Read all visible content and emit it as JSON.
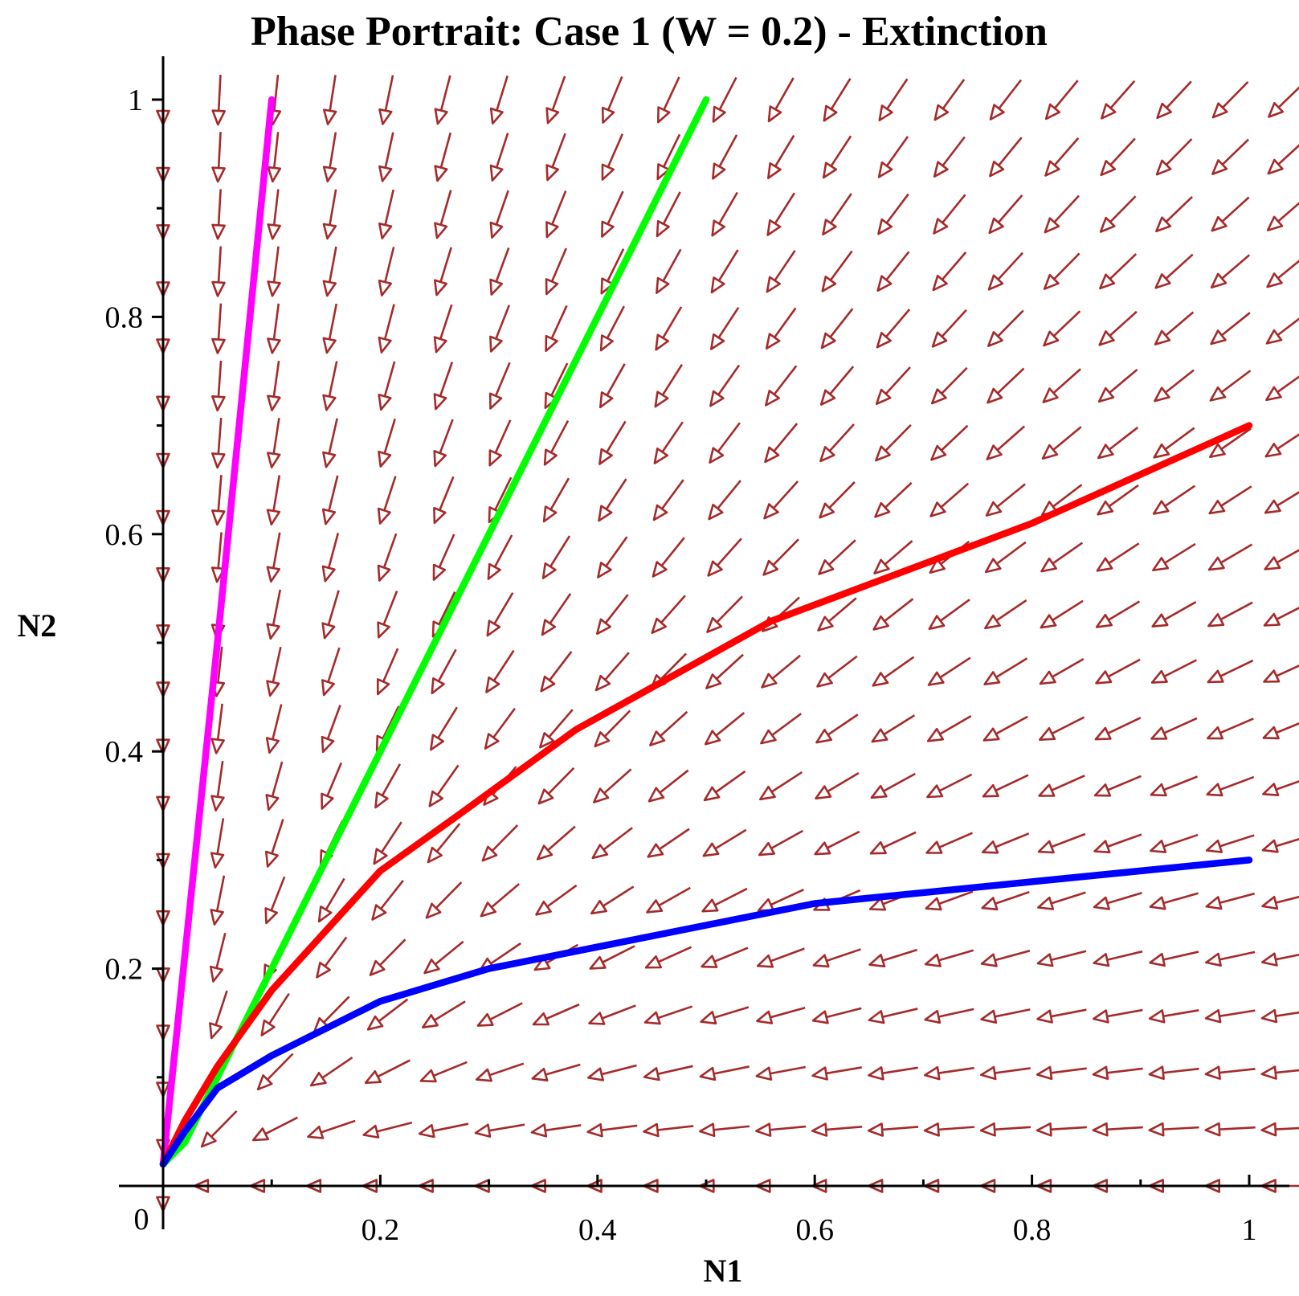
{
  "chart_data": {
    "type": "phase-portrait",
    "title": "Phase Portrait: Case 1 (W = 0.2) - Extinction",
    "xlabel": "N1",
    "ylabel": "N2",
    "xlim": [
      0,
      1.03
    ],
    "ylim": [
      -0.001,
      1.03
    ],
    "origin_label": "0",
    "xticks": [
      {
        "value": 0.2,
        "label": "0.2"
      },
      {
        "value": 0.4,
        "label": "0.4"
      },
      {
        "value": 0.6,
        "label": "0.6"
      },
      {
        "value": 0.8,
        "label": "0.8"
      },
      {
        "value": 1.0,
        "label": "1"
      }
    ],
    "yticks": [
      {
        "value": 0.2,
        "label": "0.2"
      },
      {
        "value": 0.4,
        "label": "0.4"
      },
      {
        "value": 0.6,
        "label": "0.6"
      },
      {
        "value": 0.8,
        "label": "0.8"
      },
      {
        "value": 1.0,
        "label": "1"
      }
    ],
    "minor_tick_step": 0.1,
    "vector_field": {
      "x_grid": [
        0,
        0.0517,
        0.1034,
        0.1552,
        0.2069,
        0.2586,
        0.3103,
        0.3621,
        0.4138,
        0.4655,
        0.5172,
        0.569,
        0.6207,
        0.6724,
        0.7241,
        0.7759,
        0.8276,
        0.8793,
        0.931,
        0.9828,
        1.0345
      ],
      "y_grid": [
        0,
        0.0526,
        0.1053,
        0.1579,
        0.2105,
        0.2632,
        0.3158,
        0.3684,
        0.4211,
        0.4737,
        0.5263,
        0.5789,
        0.6316,
        0.6842,
        0.7368,
        0.7895,
        0.8421,
        0.8947,
        0.9474,
        1.0
      ],
      "color": "#a52a2a"
    },
    "series": [
      {
        "name": "trajectory-magenta",
        "color": "#ff00ff",
        "x": [
          0.1,
          0.05,
          0.0
        ],
        "y": [
          1.0,
          0.5,
          0.02
        ]
      },
      {
        "name": "trajectory-green",
        "color": "#00ff00",
        "x": [
          0.5,
          0.4,
          0.3,
          0.2,
          0.1,
          0.05,
          0.02,
          0.0
        ],
        "y": [
          1.0,
          0.8,
          0.6,
          0.4,
          0.2,
          0.1,
          0.04,
          0.02
        ]
      },
      {
        "name": "trajectory-red",
        "color": "#ff0000",
        "x": [
          1.0,
          0.8,
          0.56,
          0.38,
          0.27,
          0.2,
          0.1,
          0.05,
          0.02,
          0.0
        ],
        "y": [
          0.7,
          0.61,
          0.52,
          0.42,
          0.34,
          0.29,
          0.18,
          0.11,
          0.06,
          0.02
        ]
      },
      {
        "name": "trajectory-blue",
        "color": "#0000ff",
        "x": [
          1.0,
          0.8,
          0.6,
          0.4,
          0.3,
          0.2,
          0.1,
          0.05,
          0.02,
          0.0
        ],
        "y": [
          0.3,
          0.28,
          0.26,
          0.22,
          0.2,
          0.17,
          0.12,
          0.09,
          0.05,
          0.02
        ]
      }
    ]
  }
}
